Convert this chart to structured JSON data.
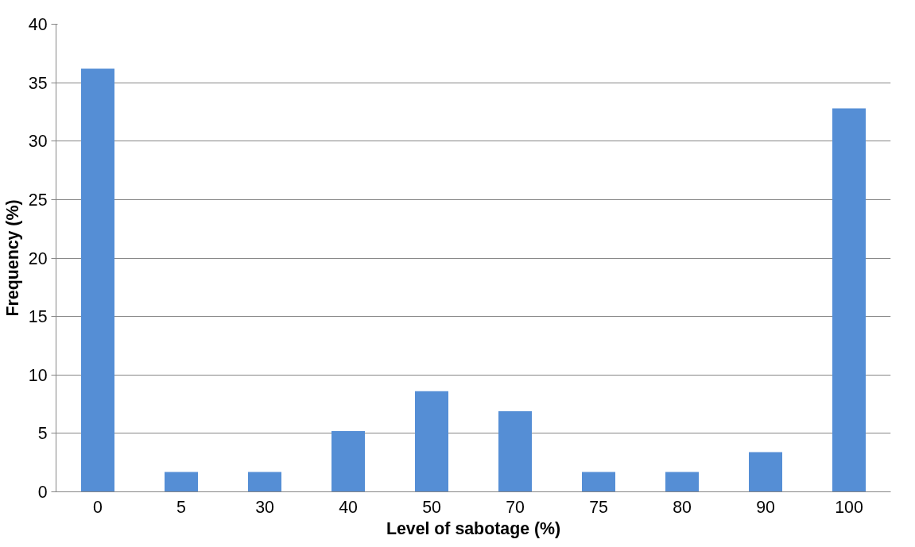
{
  "chart_data": {
    "type": "bar",
    "xlabel": "Level of sabotage (%)",
    "ylabel": "Frequency (%)",
    "categories": [
      "0",
      "5",
      "30",
      "40",
      "50",
      "70",
      "75",
      "80",
      "90",
      "100"
    ],
    "values": [
      36.2,
      1.7,
      1.7,
      5.2,
      8.6,
      6.9,
      1.7,
      1.7,
      3.4,
      32.8
    ],
    "color": "#558ed5",
    "ylim": [
      0,
      40
    ],
    "yticks": [
      0,
      5,
      10,
      15,
      20,
      25,
      30,
      35,
      40
    ],
    "grid": "y"
  }
}
